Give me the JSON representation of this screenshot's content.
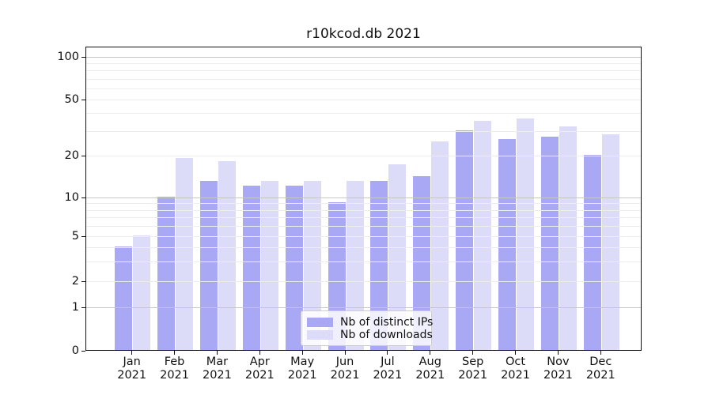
{
  "title": "r10kcod.db 2021",
  "chart_data": {
    "type": "bar",
    "title": "r10kcod.db 2021",
    "categories": [
      "Jan 2021",
      "Feb 2021",
      "Mar 2021",
      "Apr 2021",
      "May 2021",
      "Jun 2021",
      "Jul 2021",
      "Aug 2021",
      "Sep 2021",
      "Oct 2021",
      "Nov 2021",
      "Dec 2021"
    ],
    "month_labels": [
      "Jan",
      "Feb",
      "Mar",
      "Apr",
      "May",
      "Jun",
      "Jul",
      "Aug",
      "Sep",
      "Oct",
      "Nov",
      "Dec"
    ],
    "year_label": "2021",
    "series": [
      {
        "name": "Nb of distinct IPs",
        "color": "#a8a8f5",
        "values": [
          4,
          10,
          13,
          12,
          12,
          9,
          13,
          14,
          30,
          26,
          27,
          20
        ]
      },
      {
        "name": "Nb of downloads",
        "color": "#dcdcf8",
        "values": [
          5,
          19,
          18,
          13,
          13,
          13,
          17,
          25,
          35,
          36,
          32,
          28
        ]
      }
    ],
    "ylabel": "",
    "xlabel": "",
    "yscale": "log-above-1-linear-below-1",
    "ytick_values": [
      0,
      1,
      2,
      5,
      10,
      20,
      50,
      100
    ],
    "ytick_labels": [
      "0",
      "1",
      "2",
      "5",
      "10",
      "20",
      "50",
      "100"
    ],
    "ylim": [
      0,
      115
    ],
    "grid": "horizontal, minor light + decade darker, drawn over bars",
    "legend_position": "inside bottom-center"
  },
  "colors": {
    "bar_ips": "#a8a8f5",
    "bar_downloads": "#dcdcf8",
    "grid_minor": "#ededed",
    "grid_major": "#c6c6c6",
    "axis": "#111111",
    "legend_border": "#cccccc",
    "background": "#ffffff"
  }
}
